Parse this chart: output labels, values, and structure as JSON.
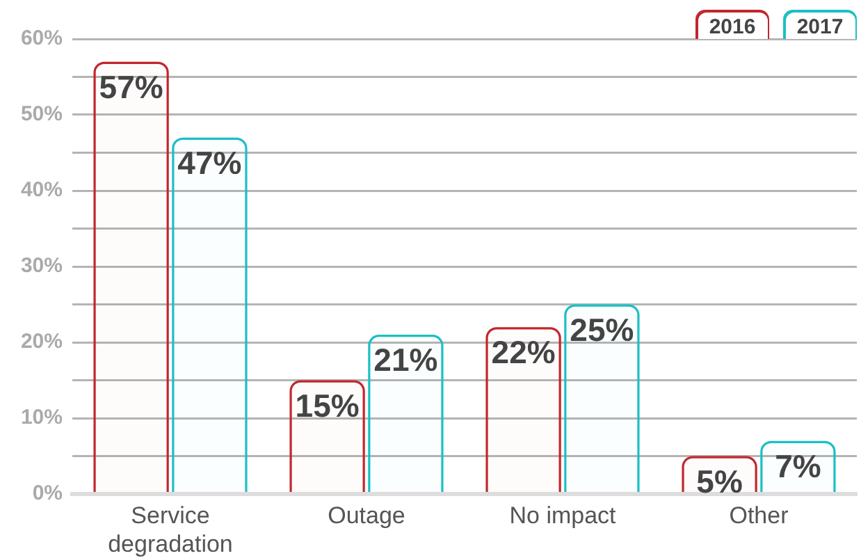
{
  "chart_data": {
    "type": "bar",
    "categories": [
      "Service degradation",
      "Outage",
      "No impact",
      "Other"
    ],
    "series": [
      {
        "name": "2016",
        "color": "#c1272d",
        "values": [
          57,
          15,
          22,
          5
        ],
        "value_labels": [
          "57%",
          "15%",
          "22%",
          "5%"
        ]
      },
      {
        "name": "2017",
        "color": "#1bbfc6",
        "values": [
          47,
          21,
          25,
          7
        ],
        "value_labels": [
          "47%",
          "21%",
          "25%",
          "7%"
        ]
      }
    ],
    "ylim": [
      0,
      60
    ],
    "yticks": [
      {
        "value": 0,
        "label": "0%"
      },
      {
        "value": 5,
        "label": null
      },
      {
        "value": 10,
        "label": "10%"
      },
      {
        "value": 15,
        "label": null
      },
      {
        "value": 20,
        "label": "20%"
      },
      {
        "value": 25,
        "label": null
      },
      {
        "value": 30,
        "label": "30%"
      },
      {
        "value": 35,
        "label": null
      },
      {
        "value": 40,
        "label": "40%"
      },
      {
        "value": 45,
        "label": null
      },
      {
        "value": 50,
        "label": "50%"
      },
      {
        "value": 55,
        "label": null
      },
      {
        "value": 60,
        "label": "60%"
      }
    ],
    "grid": "y",
    "legend": "top right"
  }
}
